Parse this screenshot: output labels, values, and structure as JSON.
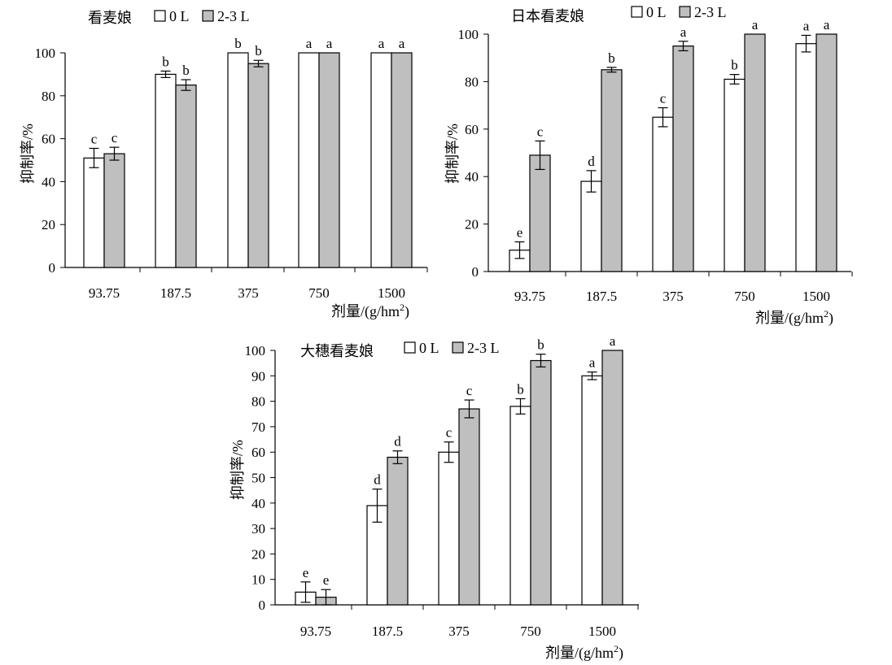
{
  "chart_data": [
    {
      "type": "bar",
      "title": "看麦娘",
      "ylabel": "抑制率/%",
      "xlabel_main": "剂量/(g/hm",
      "xlabel_sup": "2",
      "xlabel_tail": ")",
      "categories": [
        "93.75",
        "187.5",
        "375",
        "750",
        "1500"
      ],
      "ylim": [
        0,
        100
      ],
      "yticks": [
        "0",
        "20",
        "40",
        "60",
        "80",
        "100"
      ],
      "legend_placement": "top",
      "series": [
        {
          "name": "0 L",
          "color": "#ffffff",
          "values": [
            51,
            90,
            100,
            100,
            100
          ],
          "errors": [
            4.5,
            1.5,
            0,
            0,
            0
          ],
          "letters": [
            "c",
            "b",
            "b",
            "a",
            "a"
          ]
        },
        {
          "name": "2-3 L",
          "color": "#bfbfbf",
          "values": [
            53,
            85,
            95,
            100,
            100
          ],
          "errors": [
            3,
            2.5,
            1.5,
            0,
            0
          ],
          "letters": [
            "c",
            "b",
            "b",
            "a",
            "a"
          ]
        }
      ]
    },
    {
      "type": "bar",
      "title": "日本看麦娘",
      "ylabel": "抑制率/%",
      "xlabel_main": "剂量/(g/hm",
      "xlabel_sup": "2",
      "xlabel_tail": ")",
      "categories": [
        "93.75",
        "187.5",
        "375",
        "750",
        "1500"
      ],
      "ylim": [
        0,
        100
      ],
      "yticks": [
        "0",
        "20",
        "40",
        "60",
        "80",
        "100"
      ],
      "legend_placement": "top",
      "series": [
        {
          "name": "0 L",
          "color": "#ffffff",
          "values": [
            9,
            38,
            65,
            81,
            96
          ],
          "errors": [
            3.5,
            4.5,
            4,
            2,
            3.5
          ],
          "letters": [
            "e",
            "d",
            "c",
            "b",
            "a"
          ]
        },
        {
          "name": "2-3 L",
          "color": "#bfbfbf",
          "values": [
            49,
            85,
            95,
            100,
            100
          ],
          "errors": [
            6,
            1,
            2,
            0,
            0
          ],
          "letters": [
            "c",
            "b",
            "a",
            "a",
            "a"
          ]
        }
      ]
    },
    {
      "type": "bar",
      "title": "大穗看麦娘",
      "ylabel": "抑制率/%",
      "xlabel_main": "剂量/(g/hm",
      "xlabel_sup": "2",
      "xlabel_tail": ")",
      "categories": [
        "93.75",
        "187.5",
        "375",
        "750",
        "1500"
      ],
      "ylim": [
        0,
        100
      ],
      "yticks": [
        "0",
        "10",
        "20",
        "30",
        "40",
        "50",
        "60",
        "70",
        "80",
        "90",
        "100"
      ],
      "legend_placement": "top",
      "series": [
        {
          "name": "0 L",
          "color": "#ffffff",
          "values": [
            5,
            39,
            60,
            78,
            90
          ],
          "errors": [
            4,
            6.5,
            4,
            3,
            1.5
          ],
          "letters": [
            "e",
            "d",
            "c",
            "b",
            "a"
          ]
        },
        {
          "name": "2-3 L",
          "color": "#bfbfbf",
          "values": [
            3,
            58,
            77,
            96,
            100
          ],
          "errors": [
            3,
            2.5,
            3.5,
            2.5,
            0
          ],
          "letters": [
            "e",
            "d",
            "c",
            "b",
            "a"
          ]
        }
      ]
    }
  ]
}
